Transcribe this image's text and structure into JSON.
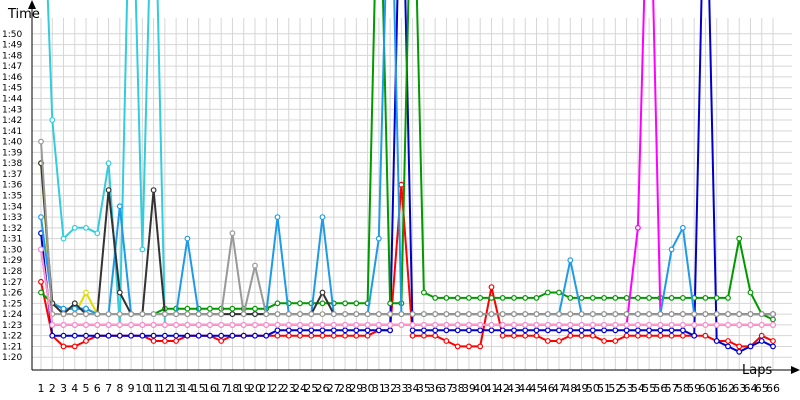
{
  "chart_data": {
    "type": "line",
    "xlabel": "Laps",
    "ylabel": "Time",
    "grid": true,
    "x": [
      1,
      2,
      3,
      4,
      5,
      6,
      7,
      8,
      9,
      10,
      11,
      12,
      13,
      14,
      15,
      16,
      17,
      18,
      19,
      20,
      21,
      22,
      23,
      24,
      25,
      26,
      27,
      28,
      29,
      30,
      31,
      32,
      33,
      34,
      35,
      36,
      37,
      38,
      39,
      40,
      41,
      42,
      43,
      44,
      45,
      46,
      47,
      48,
      49,
      50,
      51,
      52,
      53,
      54,
      55,
      56,
      57,
      58,
      59,
      60,
      61,
      62,
      63,
      64,
      65,
      66
    ],
    "x_tick_labels": [
      "1",
      "2",
      "3",
      "4",
      "5",
      "6",
      "7",
      "8",
      "9",
      "10",
      "11",
      "12",
      "13",
      "14",
      "15",
      "16",
      "17",
      "18",
      "19",
      "20",
      "21",
      "22",
      "23",
      "24",
      "25",
      "26",
      "27",
      "28",
      "29",
      "30",
      "31",
      "32",
      "33",
      "34",
      "35",
      "36",
      "37",
      "38",
      "39",
      "40",
      "41",
      "42",
      "43",
      "44",
      "45",
      "46",
      "47",
      "48",
      "49",
      "50",
      "51",
      "52",
      "53",
      "54",
      "55",
      "56",
      "57",
      "58",
      "59",
      "60",
      "61",
      "62",
      "63",
      "64",
      "65",
      "66"
    ],
    "y_ticks": [
      {
        "v": 80,
        "label": "1:20"
      },
      {
        "v": 81,
        "label": "1:21"
      },
      {
        "v": 82,
        "label": "1:22"
      },
      {
        "v": 83,
        "label": "1:23"
      },
      {
        "v": 84,
        "label": "1:24"
      },
      {
        "v": 85,
        "label": "1:25"
      },
      {
        "v": 86,
        "label": "1:26"
      },
      {
        "v": 87,
        "label": "1:27"
      },
      {
        "v": 88,
        "label": "1:28"
      },
      {
        "v": 89,
        "label": "1:29"
      },
      {
        "v": 90,
        "label": "1:30"
      },
      {
        "v": 91,
        "label": "1:31"
      },
      {
        "v": 92,
        "label": "1:32"
      },
      {
        "v": 93,
        "label": "1:33"
      },
      {
        "v": 94,
        "label": "1:34"
      },
      {
        "v": 95,
        "label": "1:35"
      },
      {
        "v": 96,
        "label": "1:36"
      },
      {
        "v": 97,
        "label": "1:37"
      },
      {
        "v": 98,
        "label": "1:38"
      },
      {
        "v": 99,
        "label": "1:39"
      },
      {
        "v": 100,
        "label": "1:40"
      },
      {
        "v": 101,
        "label": "1:41"
      },
      {
        "v": 102,
        "label": "1:42"
      },
      {
        "v": 103,
        "label": "1:43"
      },
      {
        "v": 104,
        "label": "1:44"
      },
      {
        "v": 105,
        "label": "1:45"
      },
      {
        "v": 106,
        "label": "1:46"
      },
      {
        "v": 107,
        "label": "1:47"
      },
      {
        "v": 108,
        "label": "1:48"
      },
      {
        "v": 109,
        "label": "1:49"
      },
      {
        "v": 110,
        "label": "1:50"
      }
    ],
    "ylim": [
      79,
      113
    ],
    "series": [
      {
        "color": "#ff0000",
        "values": [
          87,
          82,
          81,
          81,
          81.5,
          82,
          82,
          82,
          82,
          82,
          81.5,
          81.5,
          81.5,
          82,
          82,
          82,
          81.5,
          82,
          82,
          82,
          82,
          82,
          82,
          82,
          82,
          82,
          82,
          82,
          82,
          82,
          82.5,
          82.5,
          96,
          82,
          82,
          82,
          81.5,
          81,
          81,
          81,
          86.5,
          82,
          82,
          82,
          82,
          81.5,
          81.5,
          82,
          82,
          82,
          81.5,
          81.5,
          82,
          82,
          82,
          82,
          82,
          82,
          82,
          82,
          81.5,
          81.5,
          81,
          81,
          82,
          81.5
        ]
      },
      {
        "color": "#0000cc",
        "values": [
          91.5,
          82,
          82,
          82,
          82,
          82,
          82,
          82,
          82,
          82,
          82,
          82,
          82,
          82,
          82,
          82,
          82,
          82,
          82,
          82,
          82,
          82.5,
          82.5,
          82.5,
          82.5,
          82.5,
          82.5,
          82.5,
          82.5,
          82.5,
          82.5,
          82.5,
          130,
          82.5,
          82.5,
          82.5,
          82.5,
          82.5,
          82.5,
          82.5,
          82.5,
          82.5,
          82.5,
          82.5,
          82.5,
          82.5,
          82.5,
          82.5,
          82.5,
          82.5,
          82.5,
          82.5,
          82.5,
          82.5,
          82.5,
          82.5,
          82.5,
          82.5,
          82,
          130,
          81.5,
          81,
          80.5,
          81,
          81.5,
          81
        ]
      },
      {
        "color": "#009900",
        "values": [
          86,
          85,
          84.5,
          84.5,
          84.5,
          84,
          84,
          84,
          84,
          84,
          84,
          84.5,
          84.5,
          84.5,
          84.5,
          84.5,
          84.5,
          84.5,
          84.5,
          84.5,
          84.5,
          85,
          85,
          85,
          85,
          85,
          85,
          85,
          85,
          85,
          130,
          85,
          85,
          130,
          86,
          85.5,
          85.5,
          85.5,
          85.5,
          85.5,
          85.5,
          85.5,
          85.5,
          85.5,
          85.5,
          86,
          86,
          85.5,
          85.5,
          85.5,
          85.5,
          85.5,
          85.5,
          85.5,
          85.5,
          85.5,
          85.5,
          85.5,
          85.5,
          85.5,
          85.5,
          85.5,
          91,
          86,
          84,
          83.5
        ]
      },
      {
        "color": "#dddd00",
        "values": [
          98,
          84,
          84,
          84,
          86,
          84,
          84,
          84,
          84,
          84,
          84,
          84,
          84,
          84,
          84,
          84,
          84,
          84,
          84,
          84,
          84,
          84,
          84,
          84,
          84,
          84,
          84,
          84,
          84,
          84,
          84,
          84,
          84,
          84,
          84,
          84,
          84,
          84,
          84,
          84,
          84,
          84,
          84,
          84,
          84,
          84,
          84,
          84,
          84,
          84,
          84,
          84,
          84,
          84,
          84,
          84,
          84,
          84,
          84,
          84,
          84,
          84,
          84,
          84,
          84,
          84
        ]
      },
      {
        "color": "#ff00ff",
        "values": [
          90,
          83,
          83,
          83,
          83,
          83,
          83,
          83,
          83,
          83,
          83,
          83,
          83,
          83,
          83,
          83,
          83,
          83,
          83,
          83,
          83,
          83,
          83,
          83,
          83,
          83,
          83,
          83,
          83,
          83,
          83,
          83,
          83,
          83,
          83,
          83,
          83,
          83,
          83,
          83,
          83,
          83,
          83,
          83,
          83,
          83,
          83,
          83,
          83,
          83,
          83,
          83,
          83,
          92,
          130,
          84,
          84,
          84,
          84,
          84,
          84,
          84,
          84,
          84,
          84,
          84
        ]
      },
      {
        "color": "#33ccdd",
        "values": [
          130,
          102,
          91,
          92,
          92,
          91.5,
          98,
          83,
          130,
          90,
          130,
          83,
          83,
          83,
          83,
          83,
          83,
          83,
          83,
          83,
          83,
          83,
          83,
          83,
          83,
          83,
          83,
          83,
          83,
          83,
          83,
          83,
          83,
          83,
          83,
          83,
          83,
          83,
          83,
          83,
          83,
          83,
          83,
          83,
          83,
          83,
          83,
          83,
          83,
          83,
          83,
          83,
          83,
          83,
          83,
          83,
          83,
          83,
          83,
          83,
          83,
          83,
          83,
          83,
          83,
          83
        ]
      },
      {
        "color": "#1e9be8",
        "values": [
          93,
          85,
          84.5,
          84.5,
          84.5,
          84,
          84,
          94,
          84,
          84,
          84,
          84,
          84,
          91,
          84,
          84,
          84,
          84,
          84,
          84,
          84,
          93,
          84,
          84,
          84,
          93,
          84,
          84,
          84,
          84,
          91,
          130,
          84,
          84,
          84,
          84,
          84,
          84,
          84,
          84,
          84,
          84,
          84,
          84,
          84,
          84,
          84,
          89,
          84,
          84,
          84,
          84,
          84,
          84,
          84,
          84,
          90,
          92,
          84,
          84,
          84,
          84,
          84,
          84,
          84,
          84
        ]
      },
      {
        "color": "#333333",
        "values": [
          98,
          85,
          84,
          85,
          84,
          84,
          95.5,
          86,
          84,
          84,
          95.5,
          84,
          84,
          84,
          84,
          84,
          84,
          84,
          84,
          84,
          84,
          84,
          84,
          84,
          84,
          86,
          84,
          84,
          84,
          84,
          84,
          84,
          84,
          84,
          84,
          84,
          84,
          84,
          84,
          84,
          84,
          84,
          84,
          84,
          84,
          84,
          84,
          84,
          84,
          84,
          84,
          84,
          84,
          84,
          84,
          84,
          84,
          84,
          84,
          84,
          84,
          84,
          84,
          84,
          84,
          84
        ]
      },
      {
        "color": "#999999",
        "values": [
          100,
          84,
          84,
          84,
          84,
          84,
          84,
          84,
          84,
          84,
          84,
          84,
          84,
          84,
          84,
          84,
          84,
          91.5,
          84,
          88.5,
          84,
          84,
          84,
          84,
          84,
          84,
          84,
          84,
          84,
          84,
          84,
          84,
          84,
          84,
          84,
          84,
          84,
          84,
          84,
          84,
          84,
          84,
          84,
          84,
          84,
          84,
          84,
          84,
          84,
          84,
          84,
          84,
          84,
          84,
          84,
          84,
          84,
          84,
          84,
          84,
          84,
          84,
          84,
          84,
          84,
          84
        ]
      },
      {
        "color": "#9933cc",
        "values": [
          90,
          83,
          83,
          83,
          83,
          83,
          83,
          83,
          83,
          83,
          83,
          83,
          83,
          83,
          83,
          83,
          83,
          83,
          83,
          83,
          83,
          83,
          83,
          83,
          83,
          83,
          83,
          83,
          83,
          83,
          83,
          83,
          83,
          83,
          83,
          83,
          83,
          83,
          83,
          83,
          83,
          83,
          83,
          83,
          83,
          83,
          83,
          83,
          83,
          83,
          83,
          83,
          83,
          83,
          83,
          83,
          83,
          83,
          83,
          83,
          83,
          83,
          83,
          83,
          83,
          83
        ]
      },
      {
        "color": "#ff99cc",
        "values": [
          90,
          83,
          83,
          83,
          83,
          83,
          83,
          83,
          83,
          83,
          83,
          83,
          83,
          83,
          83,
          83,
          83,
          83,
          83,
          83,
          83,
          83,
          83,
          83,
          83,
          83,
          83,
          83,
          83,
          83,
          83,
          83,
          83,
          83,
          83,
          83,
          83,
          83,
          83,
          83,
          83,
          83,
          83,
          83,
          83,
          83,
          83,
          83,
          83,
          83,
          83,
          83,
          83,
          83,
          83,
          83,
          83,
          83,
          83,
          83,
          83,
          83,
          83,
          83,
          83,
          83
        ]
      }
    ]
  }
}
